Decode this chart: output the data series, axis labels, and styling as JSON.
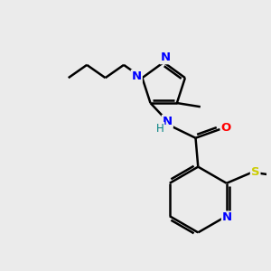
{
  "background_color": "#ebebeb",
  "atom_colors": {
    "N": "#0000ff",
    "O": "#ff0000",
    "S": "#cccc00",
    "C": "#000000",
    "H": "#008080"
  },
  "bond_color": "#000000",
  "bond_width": 1.8
}
